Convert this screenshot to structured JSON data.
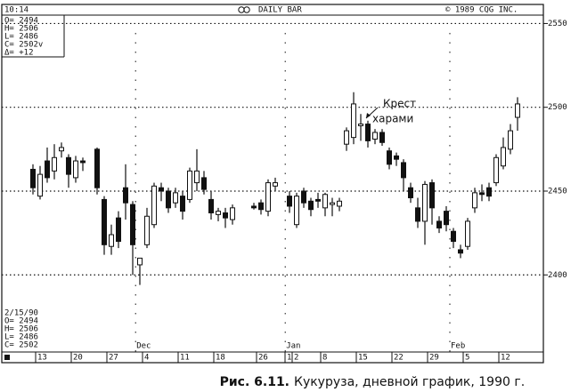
{
  "chart_data": {
    "type": "candlestick",
    "time": "10:14",
    "title": "DAILY BAR",
    "copyright": "© 1989 CQG INC.",
    "info_top": [
      "O= 2494",
      "H= 2506",
      "L= 2486",
      "C= 2502v",
      "Δ=  +12"
    ],
    "info_bottom": [
      "2/15/90",
      "O= 2494",
      "H= 2506",
      "L= 2486",
      "C= 2502"
    ],
    "annotation": [
      "Крест",
      "харами"
    ],
    "caption_label": "Рис. 6.11.",
    "caption": "Кукуруза, дневной график, 1990 г.",
    "xlim": [
      -5.375,
      70.625
    ],
    "ylim": [
      2354,
      2555
    ],
    "yticks": [
      2400,
      2450,
      2500,
      2550
    ],
    "xticks": [
      {
        "value": 0,
        "label": "13"
      },
      {
        "value": 5,
        "label": "20"
      },
      {
        "value": 10,
        "label": "27"
      },
      {
        "value": 15,
        "label": "4"
      },
      {
        "value": 20,
        "label": "11"
      },
      {
        "value": 25,
        "label": "18"
      },
      {
        "value": 31,
        "label": "26"
      },
      {
        "value": 35,
        "label": "1"
      },
      {
        "value": 36,
        "label": "2"
      },
      {
        "value": 40,
        "label": "8"
      },
      {
        "value": 45,
        "label": "15"
      },
      {
        "value": 50,
        "label": "22"
      },
      {
        "value": 55,
        "label": "29"
      },
      {
        "value": 60,
        "label": "5"
      },
      {
        "value": 65,
        "label": "12"
      }
    ],
    "months": [
      {
        "value": 13.4,
        "label": "Dec"
      },
      {
        "value": 34.4,
        "label": "Jan"
      },
      {
        "value": 57.5,
        "label": "Feb"
      }
    ],
    "grid": true,
    "up_color": "#ffffff",
    "down_color": "#111111",
    "x": [
      -1,
      0,
      1,
      2,
      3,
      4,
      5,
      6,
      8,
      9,
      10,
      11,
      12,
      13,
      14,
      15,
      16,
      17,
      18,
      19,
      20,
      21,
      22,
      23,
      24,
      25,
      26,
      27,
      30,
      31,
      32,
      33,
      35,
      36,
      37,
      38,
      39,
      40,
      41,
      42,
      43,
      44,
      45,
      46,
      47,
      48,
      49,
      50,
      51,
      52,
      53,
      54,
      55,
      56,
      57,
      58,
      59,
      60,
      61,
      62,
      63,
      64,
      65,
      66,
      67
    ],
    "open": [
      2463,
      2447,
      2468,
      2462,
      2474,
      2470,
      2458,
      2468,
      2475,
      2445,
      2417,
      2434,
      2452,
      2442,
      2406,
      2418,
      2430,
      2452,
      2450,
      2443,
      2447,
      2445,
      2455,
      2458,
      2445,
      2436,
      2437,
      2433,
      2441,
      2443,
      2438,
      2453,
      2447,
      2430,
      2450,
      2444,
      2445,
      2440,
      2442,
      2441,
      2478,
      2482,
      2489,
      2490,
      2481,
      2485,
      2474,
      2471,
      2467,
      2452,
      2440,
      2432,
      2455,
      2432,
      2438,
      2426,
      2415,
      2417,
      2440,
      2449,
      2452,
      2455,
      2465,
      2475,
      2494
    ],
    "high": [
      2466,
      2465,
      2476,
      2478,
      2479,
      2472,
      2471,
      2470,
      2476,
      2447,
      2430,
      2438,
      2466,
      2444,
      2410,
      2440,
      2455,
      2455,
      2452,
      2452,
      2450,
      2464,
      2475,
      2462,
      2450,
      2440,
      2440,
      2442,
      2443,
      2445,
      2457,
      2458,
      2450,
      2449,
      2452,
      2446,
      2449,
      2449,
      2446,
      2446,
      2488,
      2509,
      2496,
      2492,
      2487,
      2487,
      2476,
      2473,
      2469,
      2455,
      2446,
      2456,
      2457,
      2435,
      2441,
      2428,
      2418,
      2434,
      2452,
      2454,
      2455,
      2472,
      2482,
      2490,
      2506
    ],
    "low": [
      2448,
      2445,
      2455,
      2457,
      2470,
      2452,
      2455,
      2462,
      2448,
      2412,
      2412,
      2416,
      2433,
      2400,
      2394,
      2416,
      2428,
      2444,
      2437,
      2440,
      2433,
      2443,
      2450,
      2448,
      2433,
      2432,
      2428,
      2430,
      2439,
      2436,
      2435,
      2450,
      2437,
      2428,
      2440,
      2435,
      2440,
      2435,
      2435,
      2438,
      2474,
      2478,
      2480,
      2476,
      2478,
      2477,
      2463,
      2465,
      2450,
      2443,
      2428,
      2418,
      2430,
      2425,
      2426,
      2416,
      2410,
      2415,
      2437,
      2444,
      2444,
      2453,
      2463,
      2472,
      2486
    ],
    "close": [
      2452,
      2460,
      2458,
      2470,
      2476,
      2460,
      2468,
      2467,
      2452,
      2418,
      2424,
      2420,
      2443,
      2418,
      2410,
      2435,
      2453,
      2450,
      2440,
      2449,
      2438,
      2462,
      2462,
      2451,
      2437,
      2438,
      2434,
      2440,
      2440,
      2439,
      2455,
      2455,
      2441,
      2447,
      2443,
      2439,
      2444,
      2448,
      2443,
      2444,
      2486,
      2502,
      2490,
      2480,
      2485,
      2479,
      2466,
      2469,
      2458,
      2446,
      2432,
      2454,
      2440,
      2428,
      2430,
      2420,
      2413,
      2432,
      2449,
      2448,
      2447,
      2470,
      2476,
      2486,
      2502
    ]
  }
}
